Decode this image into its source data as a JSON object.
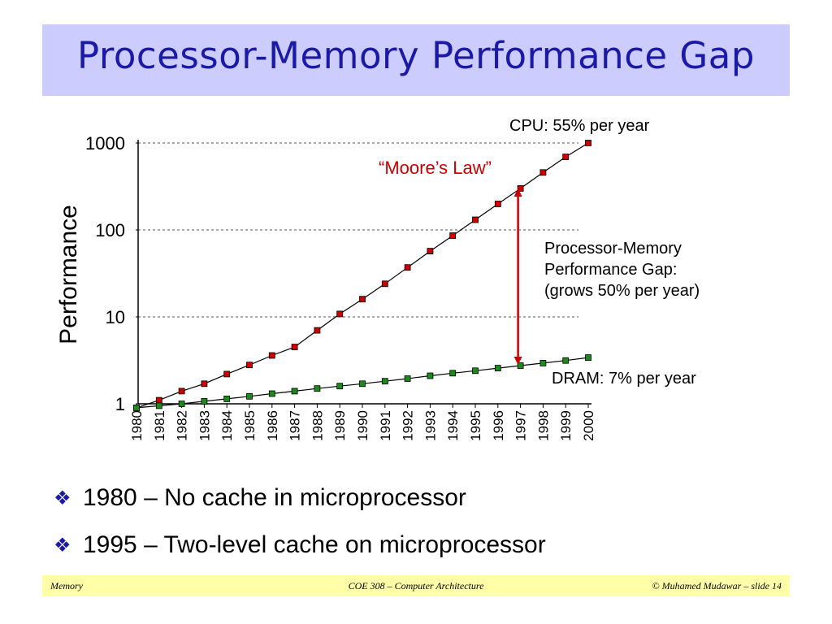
{
  "slide": {
    "title": "Processor-Memory Performance Gap",
    "bullets": [
      "1980 – No cache in microprocessor",
      "1995 – Two-level cache on microprocessor"
    ],
    "bullet_icon": "diamond-bullet-icon",
    "footer": {
      "left": "Memory",
      "center": "COE 308 – Computer Architecture",
      "right": "© Muhamed Mudawar – slide 14"
    }
  },
  "chart_data": {
    "type": "line",
    "title": "",
    "xlabel": "",
    "ylabel": "Performance",
    "yscale": "log",
    "ylim": [
      1,
      1000
    ],
    "yticks": [
      1,
      10,
      100,
      1000
    ],
    "ytick_labels": [
      "1",
      "10",
      "100",
      "1000"
    ],
    "grid": "horizontal-dashed",
    "x": [
      "1980",
      "1981",
      "1982",
      "1983",
      "1984",
      "1985",
      "1986",
      "1987",
      "1988",
      "1989",
      "1990",
      "1991",
      "1992",
      "1993",
      "1994",
      "1995",
      "1996",
      "1997",
      "1998",
      "1999",
      "2000"
    ],
    "series": [
      {
        "name": "CPU: 55% per year",
        "color": "#cc0000",
        "values": [
          0.9,
          1.1,
          1.4,
          1.7,
          2.2,
          2.8,
          3.6,
          4.5,
          7,
          10.8,
          16,
          24,
          37,
          57,
          86,
          131,
          199,
          300,
          458,
          692,
          1000
        ]
      },
      {
        "name": "DRAM: 7% per year",
        "color": "#1a8a1a",
        "values": [
          0.9,
          0.95,
          1.0,
          1.07,
          1.14,
          1.22,
          1.31,
          1.4,
          1.5,
          1.6,
          1.7,
          1.82,
          1.95,
          2.1,
          2.25,
          2.4,
          2.57,
          2.75,
          2.94,
          3.15,
          3.4
        ]
      }
    ],
    "annotations": [
      {
        "text": "“Moore’s Law”",
        "color": "#cc0000"
      },
      {
        "text_lines": [
          "Processor-Memory",
          "Performance Gap:",
          "(grows 50% per year)"
        ],
        "arrow_at": "1997",
        "arrow_color": "#cc0000"
      }
    ]
  }
}
